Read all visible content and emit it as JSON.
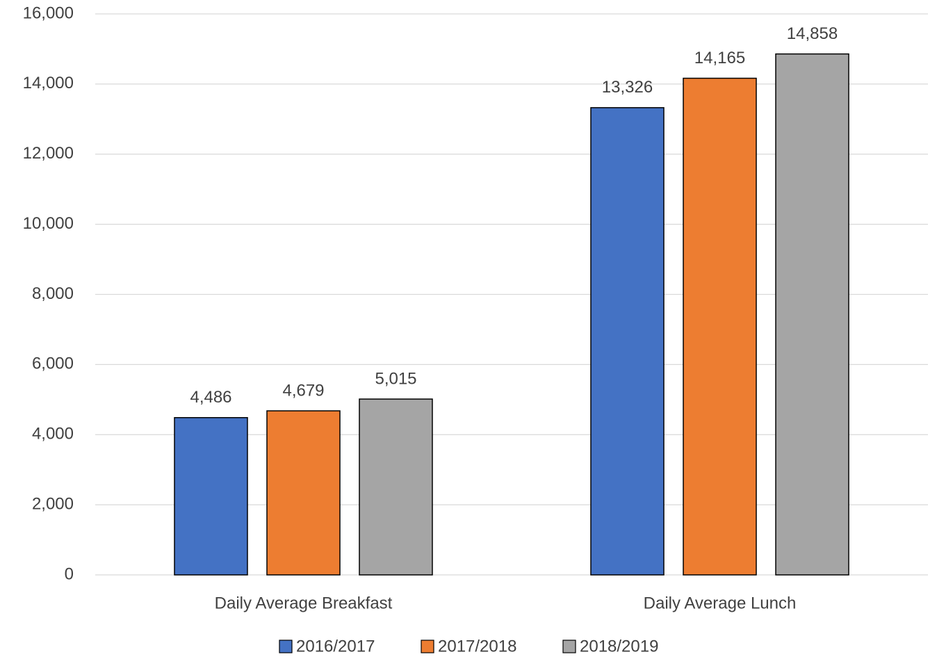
{
  "chart_data": {
    "type": "bar",
    "categories": [
      "Daily Average Breakfast",
      "Daily Average Lunch"
    ],
    "series": [
      {
        "name": "2016/2017",
        "color": "#4472c4",
        "values": [
          4486,
          13326
        ],
        "value_labels": [
          "4,486",
          "13,326"
        ]
      },
      {
        "name": "2017/2018",
        "color": "#ed7d31",
        "values": [
          4679,
          14165
        ],
        "value_labels": [
          "4,679",
          "14,165"
        ]
      },
      {
        "name": "2018/2019",
        "color": "#a5a5a5",
        "values": [
          5015,
          14858
        ],
        "value_labels": [
          "5,015",
          "14,858"
        ]
      }
    ],
    "ylim": [
      0,
      16000
    ],
    "yticks": [
      0,
      {
        "value": 2000,
        "label": "2,000"
      },
      {
        "value": 4000,
        "label": "4,000"
      },
      {
        "value": 6000,
        "label": "6,000"
      },
      {
        "value": 8000,
        "label": "8,000"
      },
      {
        "value": 10000,
        "label": "10,000"
      },
      {
        "value": 12000,
        "label": "12,000"
      },
      {
        "value": 14000,
        "label": "14,000"
      },
      {
        "value": 16000,
        "label": "16,000"
      }
    ],
    "grid": true,
    "legend": "bottom"
  }
}
